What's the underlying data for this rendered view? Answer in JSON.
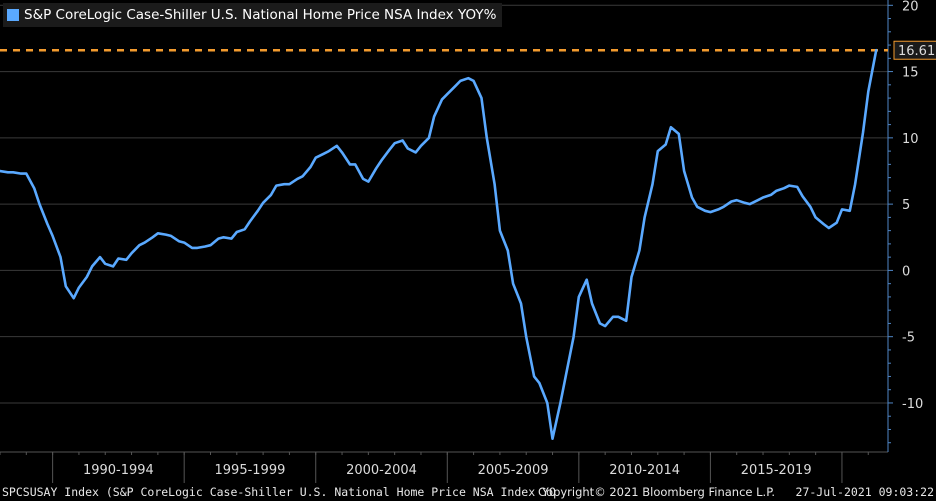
{
  "chart_data": {
    "type": "line",
    "legend": "S&P CoreLogic Case-Shiller U.S. National Home Price NSA Index YOY%",
    "series": [
      {
        "name": "S&P CoreLogic Case-Shiller U.S. National Home Price NSA Index YOY%",
        "color": "#5aa9ff",
        "x": [
          1988.0,
          1988.3,
          1988.5,
          1988.8,
          1989.0,
          1989.3,
          1989.5,
          1989.8,
          1990.0,
          1990.3,
          1990.5,
          1990.8,
          1991.0,
          1991.3,
          1991.5,
          1991.8,
          1992.0,
          1992.3,
          1992.5,
          1992.8,
          1993.0,
          1993.3,
          1993.5,
          1993.8,
          1994.0,
          1994.3,
          1994.5,
          1994.8,
          1995.0,
          1995.3,
          1995.5,
          1995.8,
          1996.0,
          1996.3,
          1996.5,
          1996.8,
          1997.0,
          1997.3,
          1997.5,
          1997.8,
          1998.0,
          1998.3,
          1998.5,
          1998.8,
          1999.0,
          1999.3,
          1999.5,
          1999.8,
          2000.0,
          2000.3,
          2000.5,
          2000.8,
          2001.0,
          2001.3,
          2001.5,
          2001.8,
          2002.0,
          2002.3,
          2002.5,
          2002.8,
          2003.0,
          2003.3,
          2003.5,
          2003.8,
          2004.0,
          2004.3,
          2004.5,
          2004.8,
          2005.0,
          2005.3,
          2005.5,
          2005.8,
          2006.0,
          2006.3,
          2006.5,
          2006.8,
          2007.0,
          2007.3,
          2007.5,
          2007.8,
          2008.0,
          2008.3,
          2008.5,
          2008.8,
          2009.0,
          2009.3,
          2009.5,
          2009.8,
          2010.0,
          2010.3,
          2010.5,
          2010.8,
          2011.0,
          2011.3,
          2011.5,
          2011.8,
          2012.0,
          2012.3,
          2012.5,
          2012.8,
          2013.0,
          2013.3,
          2013.5,
          2013.8,
          2014.0,
          2014.3,
          2014.5,
          2014.8,
          2015.0,
          2015.3,
          2015.5,
          2015.8,
          2016.0,
          2016.3,
          2016.5,
          2016.8,
          2017.0,
          2017.3,
          2017.5,
          2017.8,
          2018.0,
          2018.3,
          2018.5,
          2018.8,
          2019.0,
          2019.3,
          2019.5,
          2019.8,
          2020.0,
          2020.3,
          2020.5,
          2020.8,
          2021.0,
          2021.3
        ],
        "values": [
          7.5,
          7.4,
          7.4,
          7.3,
          7.3,
          6.2,
          5.0,
          3.5,
          2.6,
          1.0,
          -1.2,
          -2.1,
          -1.3,
          -0.5,
          0.3,
          1.0,
          0.5,
          0.3,
          0.9,
          0.8,
          1.3,
          1.9,
          2.1,
          2.5,
          2.8,
          2.7,
          2.6,
          2.2,
          2.1,
          1.7,
          1.7,
          1.8,
          1.9,
          2.4,
          2.5,
          2.4,
          2.9,
          3.1,
          3.7,
          4.5,
          5.1,
          5.7,
          6.4,
          6.5,
          6.5,
          6.9,
          7.1,
          7.8,
          8.5,
          8.8,
          9.0,
          9.4,
          8.9,
          8.0,
          8.0,
          6.9,
          6.7,
          7.7,
          8.3,
          9.1,
          9.6,
          9.8,
          9.2,
          8.9,
          9.4,
          10.0,
          11.6,
          12.9,
          13.3,
          13.9,
          14.3,
          14.5,
          14.3,
          13.0,
          10.0,
          6.5,
          3.0,
          1.5,
          -1.0,
          -2.5,
          -5.0,
          -8.0,
          -8.5,
          -10.0,
          -12.7,
          -10.0,
          -8.0,
          -5.0,
          -2.0,
          -0.7,
          -2.5,
          -4.0,
          -4.2,
          -3.5,
          -3.5,
          -3.8,
          -0.5,
          1.5,
          4.0,
          6.5,
          9.0,
          9.5,
          10.8,
          10.3,
          7.5,
          5.5,
          4.8,
          4.5,
          4.4,
          4.6,
          4.8,
          5.2,
          5.3,
          5.1,
          5.0,
          5.3,
          5.5,
          5.7,
          6.0,
          6.2,
          6.4,
          6.3,
          5.6,
          4.8,
          4.0,
          3.5,
          3.2,
          3.6,
          4.6,
          4.5,
          6.5,
          10.4,
          13.5,
          16.61
        ]
      }
    ],
    "y_ticks": [
      20,
      15,
      10,
      5,
      0,
      -5,
      -10
    ],
    "ylim": [
      -13.7,
      20.4
    ],
    "xlim": [
      1988.0,
      2021.75
    ],
    "x_labels": [
      {
        "label": "1990-1994",
        "start": 1990,
        "end": 1995
      },
      {
        "label": "1995-1999",
        "start": 1995,
        "end": 2000
      },
      {
        "label": "2000-2004",
        "start": 2000,
        "end": 2005
      },
      {
        "label": "2005-2009",
        "start": 2005,
        "end": 2010
      },
      {
        "label": "2010-2014",
        "start": 2010,
        "end": 2015
      },
      {
        "label": "2015-2019",
        "start": 2015,
        "end": 2020
      }
    ],
    "annotation": {
      "value": 16.61,
      "label": "16.61",
      "color": "#f39b2e"
    },
    "grid": true,
    "grid_color": "#3a3a3a",
    "axis_color": "#4f86c6"
  },
  "footer": {
    "left": "SPCSUSAY Index (S&P CoreLogic Case-Shiller U.S. National Home Price NSA Index YO",
    "middle": "Copyright© 2021 Bloomberg Finance L.P.",
    "right": "27-Jul-2021 09:03:22"
  }
}
